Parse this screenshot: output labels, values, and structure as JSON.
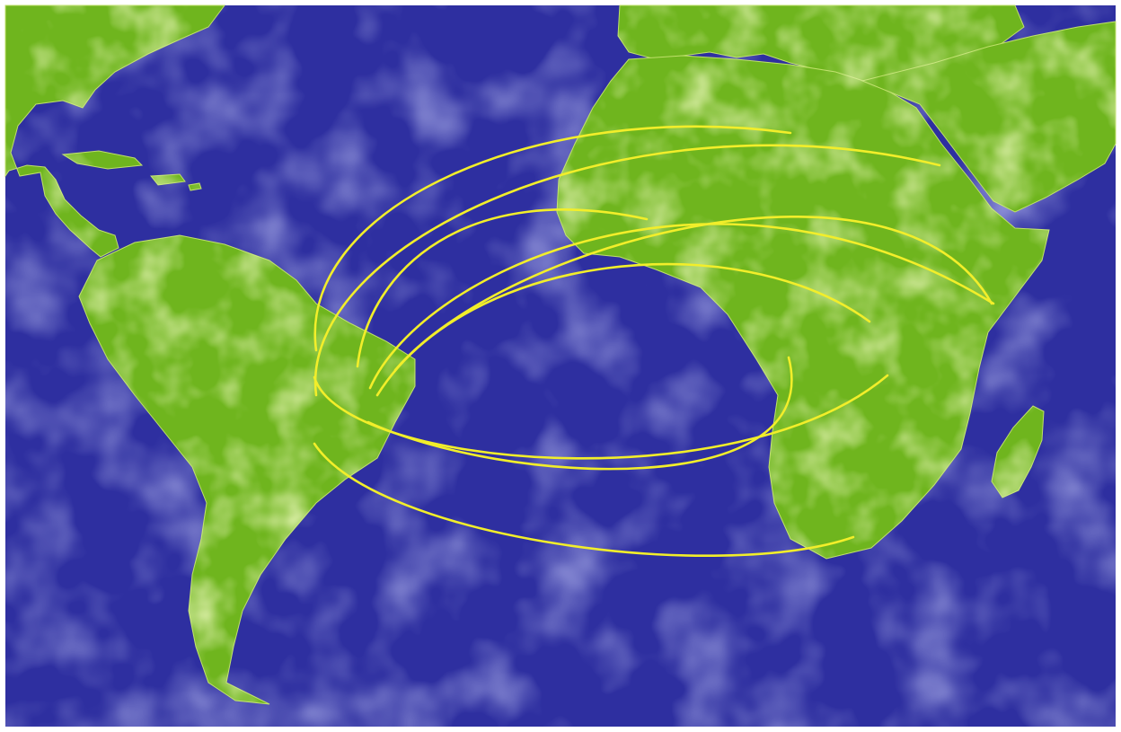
{
  "colors": {
    "frame": "#ffffff",
    "ocean": "#2e2fa0",
    "ocean_light": "#6b6fd0",
    "land": "#6fb51e",
    "land_light": "#bfe06a",
    "route": "#f2ee2a"
  },
  "regions": [
    "north-america",
    "south-america",
    "africa",
    "europe",
    "arabia",
    "madagascar",
    "caribbean"
  ],
  "routes": [
    {
      "from": "brazil",
      "to": "west-africa"
    },
    {
      "from": "brazil",
      "to": "north-africa"
    },
    {
      "from": "brazil",
      "to": "northeast-africa"
    },
    {
      "from": "brazil",
      "to": "east-africa"
    },
    {
      "from": "brazil",
      "to": "central-africa"
    },
    {
      "from": "brazil",
      "to": "great-lakes"
    },
    {
      "from": "brazil",
      "to": "horn-of-africa"
    },
    {
      "from": "brazil",
      "to": "angola"
    },
    {
      "from": "brazil",
      "to": "south-africa"
    }
  ]
}
